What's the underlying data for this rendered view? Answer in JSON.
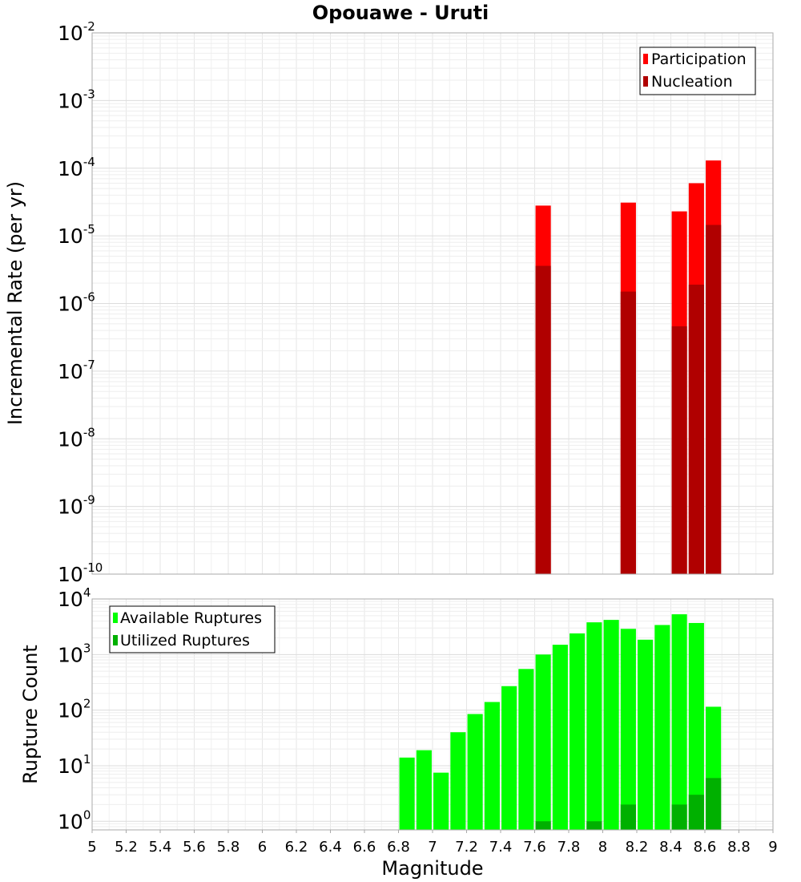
{
  "chart_data": [
    {
      "type": "bar",
      "title": "Opouawe - Uruti",
      "xlabel": "",
      "ylabel": "Incremental Rate (per yr)",
      "yscale": "log",
      "xlim": [
        5,
        9
      ],
      "ylim": [
        1e-10,
        0.01
      ],
      "ytick_base": "10",
      "ytick_exponents": [
        "-10",
        "-9",
        "-8",
        "-7",
        "-6",
        "-5",
        "-4",
        "-3",
        "-2"
      ],
      "grid": true,
      "legend_position": "top-right",
      "bar_width": 0.09,
      "series": [
        {
          "name": "Participation",
          "color": "#ff0000",
          "x": [
            7.65,
            8.15,
            8.45,
            8.55,
            8.65
          ],
          "values": [
            2.8e-05,
            3.1e-05,
            2.3e-05,
            6e-05,
            0.00013
          ]
        },
        {
          "name": "Nucleation",
          "color": "#b00000",
          "x": [
            7.65,
            8.15,
            8.45,
            8.55,
            8.65
          ],
          "values": [
            3.6e-06,
            1.5e-06,
            4.6e-07,
            1.9e-06,
            1.45e-05
          ]
        }
      ]
    },
    {
      "type": "bar",
      "title": "",
      "xlabel": "Magnitude",
      "ylabel": "Rupture Count",
      "yscale": "log",
      "xlim": [
        5,
        9
      ],
      "ylim": [
        0.7,
        10000
      ],
      "ytick_base": "10",
      "ytick_exponents": [
        "0",
        "1",
        "2",
        "3",
        "4"
      ],
      "xticks": [
        "5",
        "5.2",
        "5.4",
        "5.6",
        "5.8",
        "6",
        "6.2",
        "6.4",
        "6.6",
        "6.8",
        "7",
        "7.2",
        "7.4",
        "7.6",
        "7.8",
        "8",
        "8.2",
        "8.4",
        "8.6",
        "8.8",
        "9"
      ],
      "grid": true,
      "legend_position": "top-left",
      "bar_width": 0.09,
      "series": [
        {
          "name": "Available Ruptures",
          "color": "#00ff00",
          "x": [
            6.85,
            6.95,
            7.05,
            7.15,
            7.25,
            7.35,
            7.45,
            7.55,
            7.65,
            7.75,
            7.85,
            7.95,
            8.05,
            8.15,
            8.25,
            8.35,
            8.45,
            8.55,
            8.65
          ],
          "values": [
            14,
            19,
            7.5,
            40,
            85,
            140,
            270,
            550,
            1000,
            1500,
            2400,
            3800,
            4200,
            2900,
            1850,
            3400,
            5300,
            3700,
            115
          ]
        },
        {
          "name": "Utilized Ruptures",
          "color": "#00b000",
          "x": [
            7.65,
            7.95,
            8.15,
            8.45,
            8.55,
            8.65
          ],
          "values": [
            1,
            1,
            2,
            2,
            3,
            6
          ]
        }
      ]
    }
  ]
}
